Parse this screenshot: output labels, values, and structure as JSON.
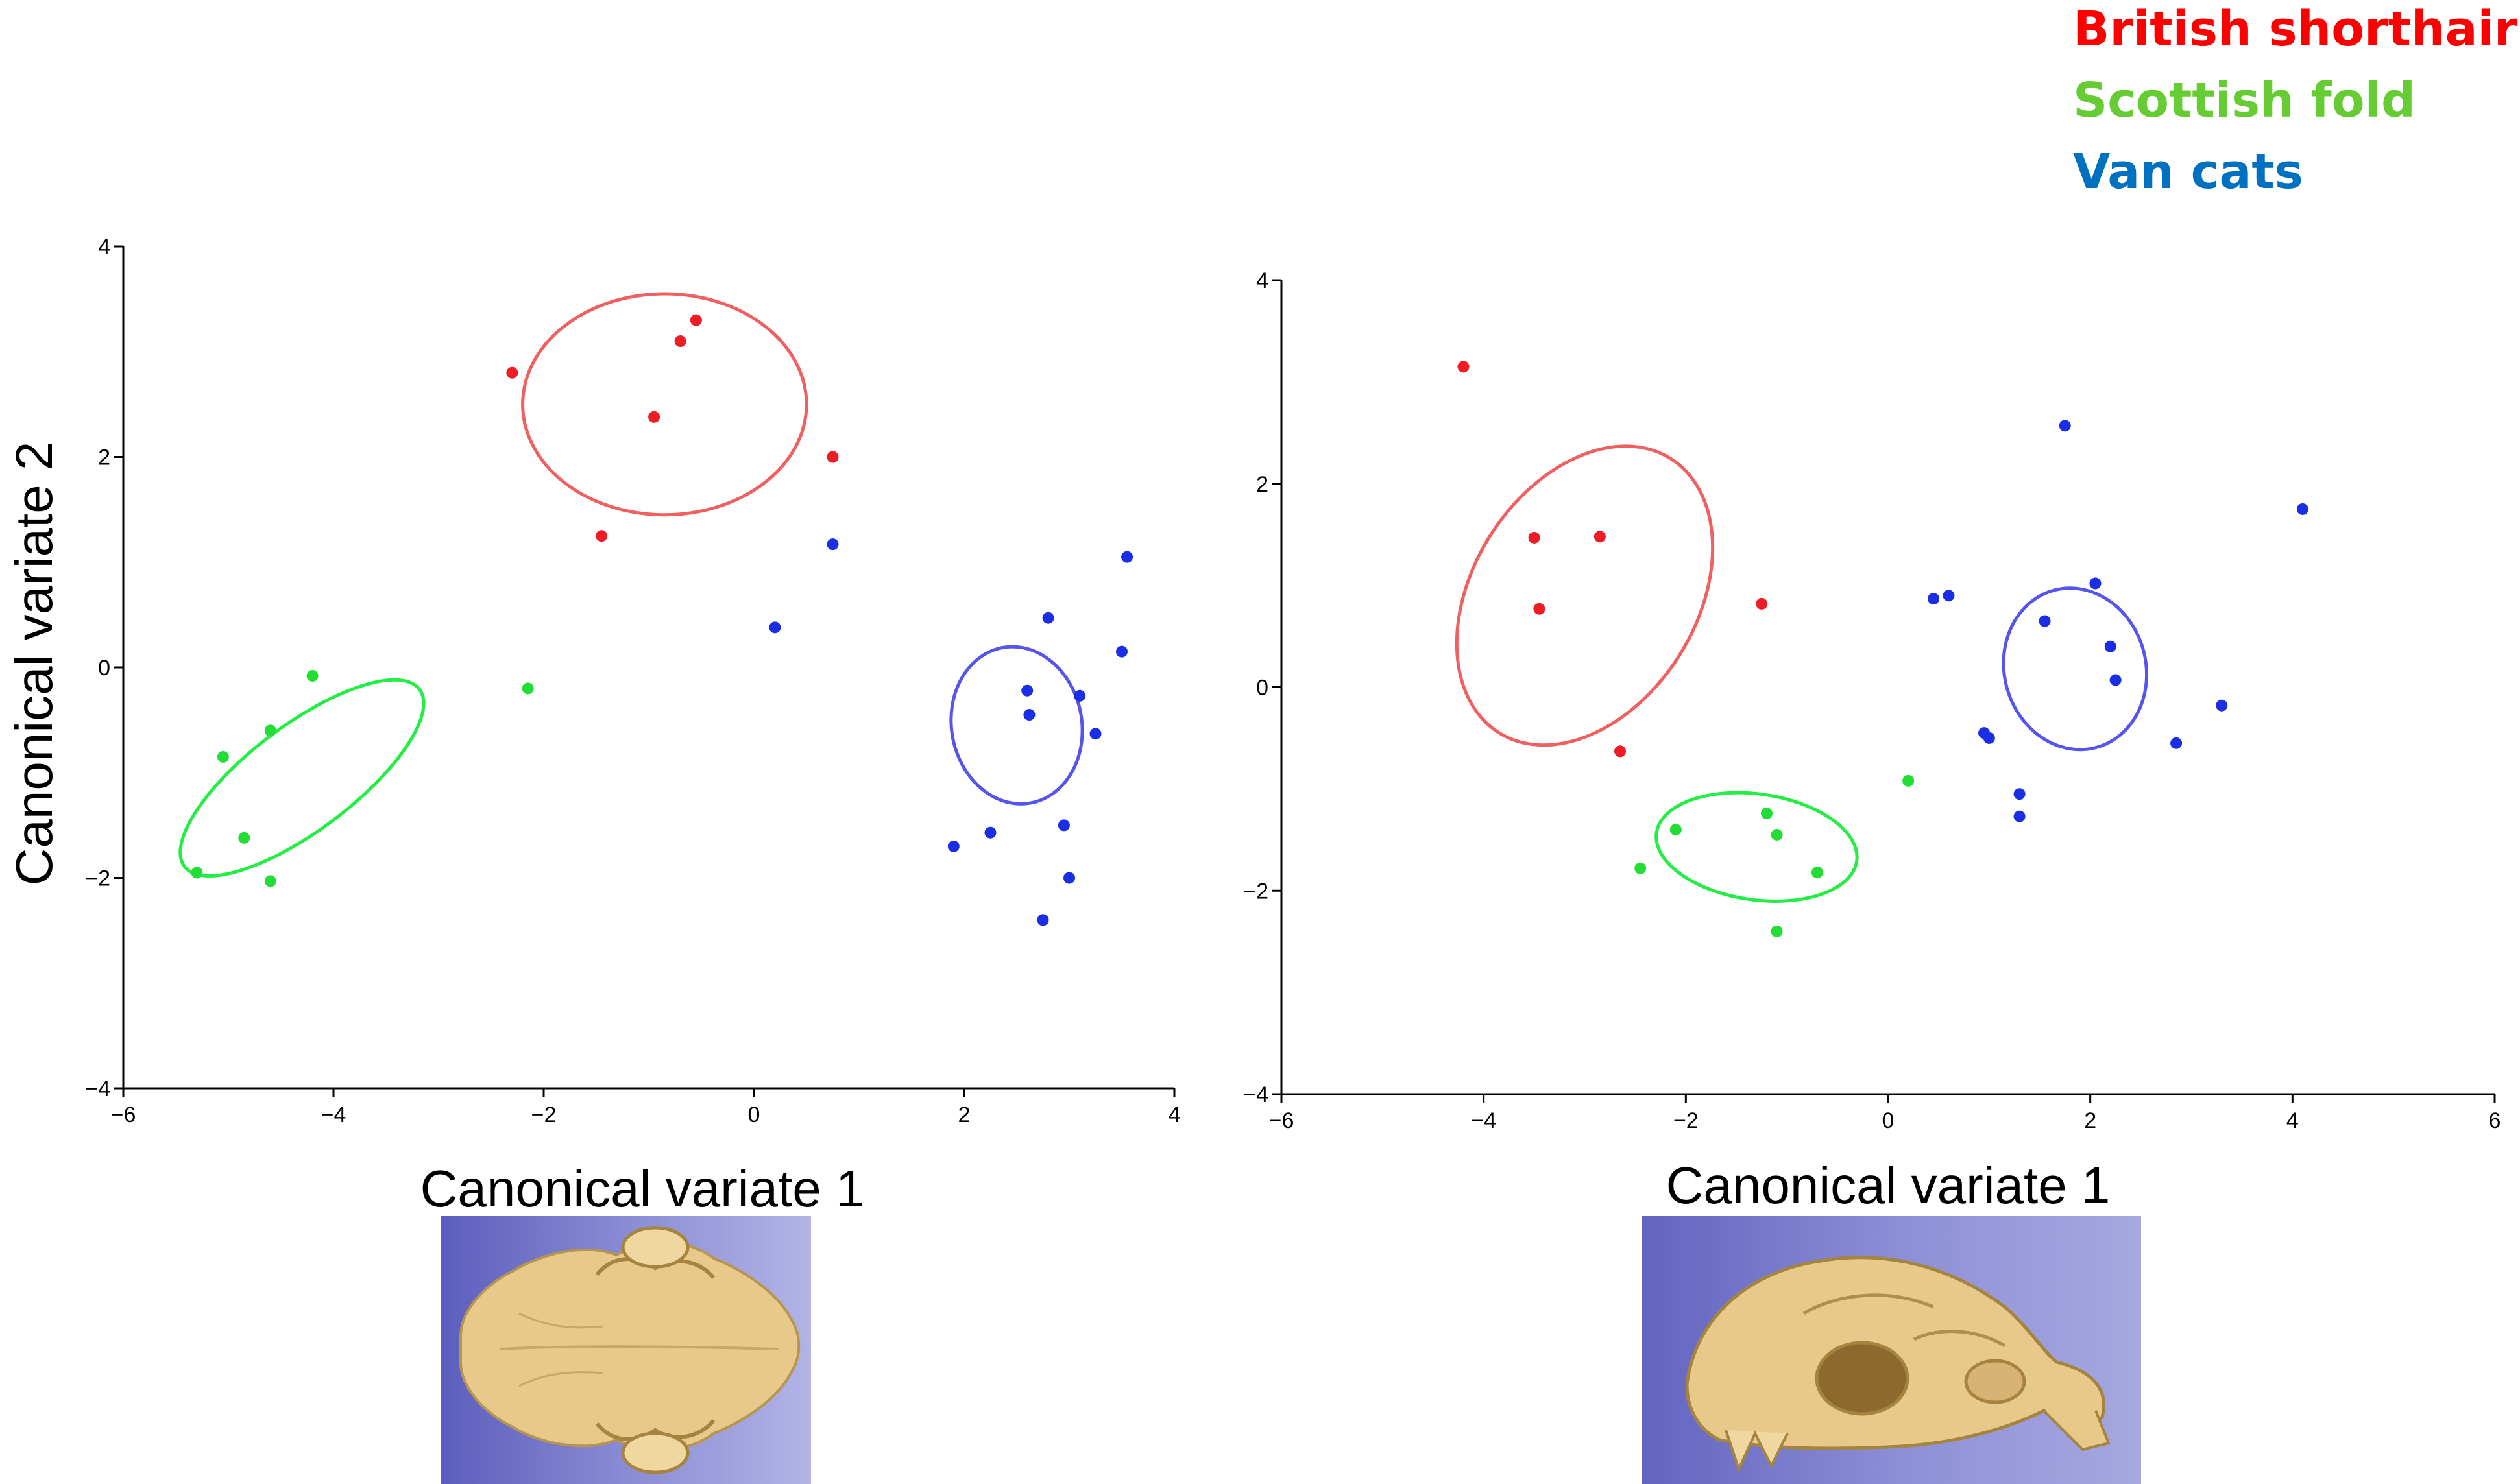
{
  "colors": {
    "british_shorthair": "#ee1c24",
    "scottish_fold": "#22dd33",
    "van_cats": "#1a2ee6",
    "legend_british_shorthair": "#ff0000",
    "legend_scottish_fold": "#66cc33",
    "legend_van_cats": "#0070c0",
    "ellipse_british_shorthair": "#f06060",
    "ellipse_scottish_fold": "#22ee44",
    "ellipse_van_cats": "#5555ee"
  },
  "legend": {
    "entries": [
      {
        "label": "British shorthair",
        "color_key": "legend_british_shorthair"
      },
      {
        "label": "Scottish fold",
        "color_key": "legend_scottish_fold"
      },
      {
        "label": "Van cats",
        "color_key": "legend_van_cats"
      }
    ]
  },
  "chart_data": [
    {
      "type": "scatter",
      "xlabel": "Canonical variate 1",
      "ylabel": "Canonical variate 2",
      "xlim": [
        -6,
        4
      ],
      "ylim": [
        -4,
        4
      ],
      "xticks": [
        -6,
        -4,
        -2,
        0,
        2,
        4
      ],
      "yticks": [
        -4,
        -2,
        0,
        2,
        4
      ],
      "series": [
        {
          "name": "British shorthair",
          "color_key": "british_shorthair",
          "points": [
            [
              -2.3,
              2.8
            ],
            [
              -0.7,
              3.1
            ],
            [
              -0.55,
              3.3
            ],
            [
              -0.95,
              2.38
            ],
            [
              0.75,
              2.0
            ],
            [
              -1.45,
              1.25
            ]
          ],
          "ellipse": {
            "cx": -0.85,
            "cy": 2.5,
            "rx": 1.35,
            "ry": 1.05,
            "angle": 0
          }
        },
        {
          "name": "Scottish fold",
          "color_key": "scottish_fold",
          "points": [
            [
              -4.2,
              -0.08
            ],
            [
              -2.15,
              -0.2
            ],
            [
              -5.05,
              -0.85
            ],
            [
              -4.6,
              -0.6
            ],
            [
              -4.85,
              -1.62
            ],
            [
              -5.3,
              -1.95
            ],
            [
              -4.6,
              -2.03
            ]
          ],
          "ellipse": {
            "cx": -4.3,
            "cy": -1.05,
            "rx": 1.4,
            "ry": 0.5,
            "angle": 37
          }
        },
        {
          "name": "Van cats",
          "color_key": "van_cats",
          "points": [
            [
              0.75,
              1.17
            ],
            [
              0.2,
              0.38
            ],
            [
              3.55,
              1.05
            ],
            [
              2.8,
              0.47
            ],
            [
              3.5,
              0.15
            ],
            [
              2.6,
              -0.22
            ],
            [
              3.1,
              -0.27
            ],
            [
              2.62,
              -0.45
            ],
            [
              3.25,
              -0.63
            ],
            [
              1.9,
              -1.7
            ],
            [
              2.25,
              -1.57
            ],
            [
              2.95,
              -1.5
            ],
            [
              3.0,
              -2.0
            ],
            [
              2.75,
              -2.4
            ]
          ],
          "ellipse": {
            "cx": 2.5,
            "cy": -0.55,
            "rx": 0.62,
            "ry": 0.75,
            "angle": 10
          }
        }
      ]
    },
    {
      "type": "scatter",
      "xlabel": "Canonical variate 1",
      "ylabel": "",
      "xlim": [
        -6,
        6
      ],
      "ylim": [
        -4,
        4
      ],
      "xticks": [
        -6,
        -4,
        -2,
        0,
        2,
        4,
        6
      ],
      "yticks": [
        -4,
        -2,
        0,
        2,
        4
      ],
      "series": [
        {
          "name": "British shorthair",
          "color_key": "british_shorthair",
          "points": [
            [
              -4.2,
              3.15
            ],
            [
              -3.5,
              1.47
            ],
            [
              -2.85,
              1.48
            ],
            [
              -3.45,
              0.77
            ],
            [
              -1.25,
              0.82
            ],
            [
              -2.65,
              -0.63
            ]
          ],
          "ellipse": {
            "cx": -3.0,
            "cy": 0.9,
            "rx": 1.6,
            "ry": 1.1,
            "angle": 58
          }
        },
        {
          "name": "Scottish fold",
          "color_key": "scottish_fold",
          "points": [
            [
              0.2,
              -0.92
            ],
            [
              -2.1,
              -1.4
            ],
            [
              -1.2,
              -1.24
            ],
            [
              -1.1,
              -1.45
            ],
            [
              -2.45,
              -1.78
            ],
            [
              -0.7,
              -1.82
            ],
            [
              -1.1,
              -2.4
            ]
          ],
          "ellipse": {
            "cx": -1.3,
            "cy": -1.57,
            "rx": 1.0,
            "ry": 0.52,
            "angle": -8
          }
        },
        {
          "name": "Van cats",
          "color_key": "van_cats",
          "points": [
            [
              1.75,
              2.57
            ],
            [
              4.1,
              1.75
            ],
            [
              2.05,
              1.02
            ],
            [
              0.45,
              0.87
            ],
            [
              0.6,
              0.9
            ],
            [
              1.55,
              0.65
            ],
            [
              2.2,
              0.4
            ],
            [
              2.25,
              0.07
            ],
            [
              3.3,
              -0.18
            ],
            [
              0.95,
              -0.45
            ],
            [
              1.0,
              -0.5
            ],
            [
              2.85,
              -0.55
            ],
            [
              1.3,
              -1.05
            ],
            [
              1.3,
              -1.27
            ]
          ],
          "ellipse": {
            "cx": 1.85,
            "cy": 0.18,
            "rx": 0.7,
            "ry": 0.8,
            "angle": 15
          }
        }
      ]
    }
  ],
  "skull_images": [
    {
      "icon": "skull-dorsal-view-icon"
    },
    {
      "icon": "skull-lateral-view-icon"
    }
  ]
}
